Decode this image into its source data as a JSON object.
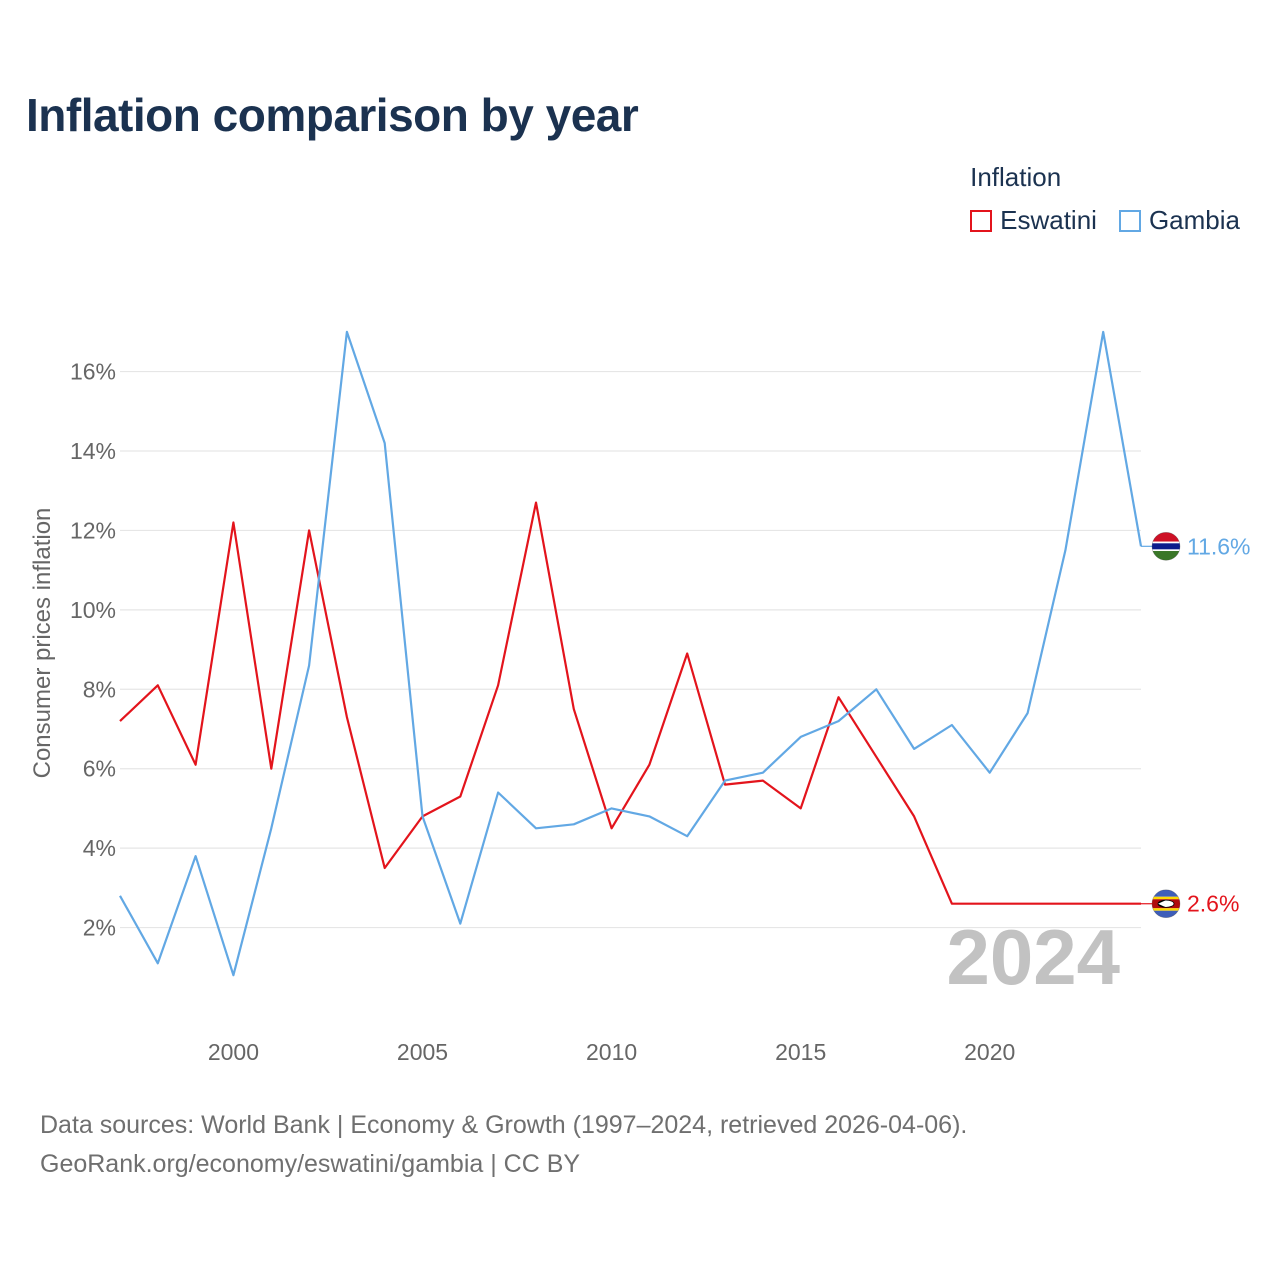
{
  "title": "Inflation comparison by year",
  "legend": {
    "title": "Inflation",
    "items": [
      {
        "label": "Eswatini",
        "color": "#e3141c"
      },
      {
        "label": "Gambia",
        "color": "#62a8e4"
      }
    ]
  },
  "source": {
    "line1": "Data sources: World Bank | Economy & Growth (1997–2024, retrieved 2026-04-06).",
    "line2": "GeoRank.org/economy/eswatini/gambia | CC BY"
  },
  "chart_data": {
    "type": "line",
    "title": "Inflation comparison by year",
    "xlabel": "",
    "ylabel": "Consumer prices inflation",
    "x": [
      1997,
      1998,
      1999,
      2000,
      2001,
      2002,
      2003,
      2004,
      2005,
      2006,
      2007,
      2008,
      2009,
      2010,
      2011,
      2012,
      2013,
      2014,
      2015,
      2016,
      2017,
      2018,
      2019,
      2020,
      2021,
      2022,
      2023,
      2024
    ],
    "xlim": [
      1997,
      2024
    ],
    "ylim": [
      0,
      17.5
    ],
    "x_ticks": [
      2000,
      2005,
      2010,
      2015,
      2020
    ],
    "x_tick_labels": [
      "2000",
      "2005",
      "2010",
      "2015",
      "2020"
    ],
    "y_ticks": [
      2,
      4,
      6,
      8,
      10,
      12,
      14,
      16
    ],
    "y_tick_labels": [
      "2%",
      "4%",
      "6%",
      "8%",
      "10%",
      "12%",
      "14%",
      "16%"
    ],
    "grid": true,
    "legend_position": "top-right",
    "year_label": "2024",
    "series": [
      {
        "name": "Eswatini",
        "color": "#e3141c",
        "end_label": "2.6%",
        "flag": "eswatini-flag-icon",
        "values": [
          7.2,
          8.1,
          6.1,
          12.2,
          6.0,
          12.0,
          7.3,
          3.5,
          4.8,
          5.3,
          8.1,
          12.7,
          7.5,
          4.5,
          6.1,
          8.9,
          5.6,
          5.7,
          5.0,
          7.8,
          6.3,
          4.8,
          2.6,
          2.6,
          2.6,
          2.6,
          2.6,
          2.6
        ]
      },
      {
        "name": "Gambia",
        "color": "#62a8e4",
        "end_label": "11.6%",
        "flag": "gambia-flag-icon",
        "values": [
          2.8,
          1.1,
          3.8,
          0.8,
          4.5,
          8.6,
          17.0,
          14.2,
          4.8,
          2.1,
          5.4,
          4.5,
          4.6,
          5.0,
          4.8,
          4.3,
          5.7,
          5.9,
          6.8,
          7.2,
          8.0,
          6.5,
          7.1,
          5.9,
          7.4,
          11.5,
          17.0,
          11.6
        ]
      }
    ]
  }
}
